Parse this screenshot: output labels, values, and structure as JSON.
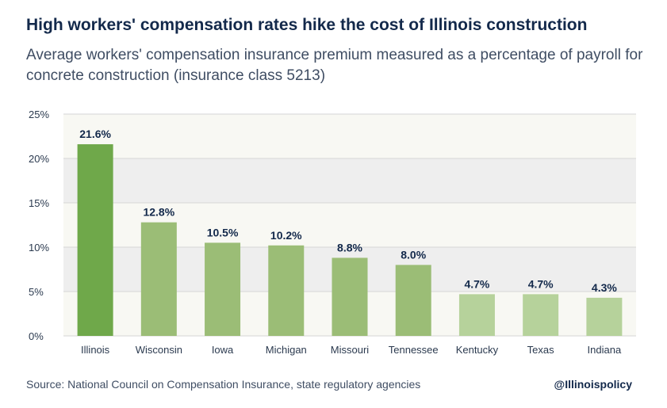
{
  "title": "High workers' compensation rates hike the cost of Illinois construction",
  "subtitle": "Average workers' compensation insurance premium measured as a percentage of payroll for concrete construction (insurance class 5213)",
  "source": "Source: National Council on Compensation Insurance, state regulatory agencies",
  "handle": "@Illinoispolicy",
  "colors": {
    "band_light": "#f8f8f3",
    "band_dark": "#eeeeee",
    "gridline": "#d6d6d6",
    "highlight_bar": "#6fa84a",
    "bar_mid": "#9bbd76",
    "bar_light": "#b6d29b",
    "label_text": "#13294b",
    "axis_text": "#2b3a4f"
  },
  "chart_data": {
    "type": "bar",
    "categories": [
      "Illinois",
      "Wisconsin",
      "Iowa",
      "Michigan",
      "Missouri",
      "Tennessee",
      "Kentucky",
      "Texas",
      "Indiana"
    ],
    "values": [
      21.6,
      12.8,
      10.5,
      10.2,
      8.8,
      8.0,
      4.7,
      4.7,
      4.3
    ],
    "data_labels": [
      "21.6%",
      "12.8%",
      "10.5%",
      "10.2%",
      "8.8%",
      "8.0%",
      "4.7%",
      "4.7%",
      "4.3%"
    ],
    "bar_colors": [
      "#6fa84a",
      "#9bbd76",
      "#9bbd76",
      "#9bbd76",
      "#9bbd76",
      "#9bbd76",
      "#b6d29b",
      "#b6d29b",
      "#b6d29b"
    ],
    "yticks": [
      0,
      5,
      10,
      15,
      20,
      25
    ],
    "ytick_labels": [
      "0%",
      "5%",
      "10%",
      "15%",
      "20%",
      "25%"
    ],
    "ylim": [
      0,
      25
    ],
    "xlabel": "",
    "ylabel": "",
    "grid": true,
    "legend": false
  }
}
